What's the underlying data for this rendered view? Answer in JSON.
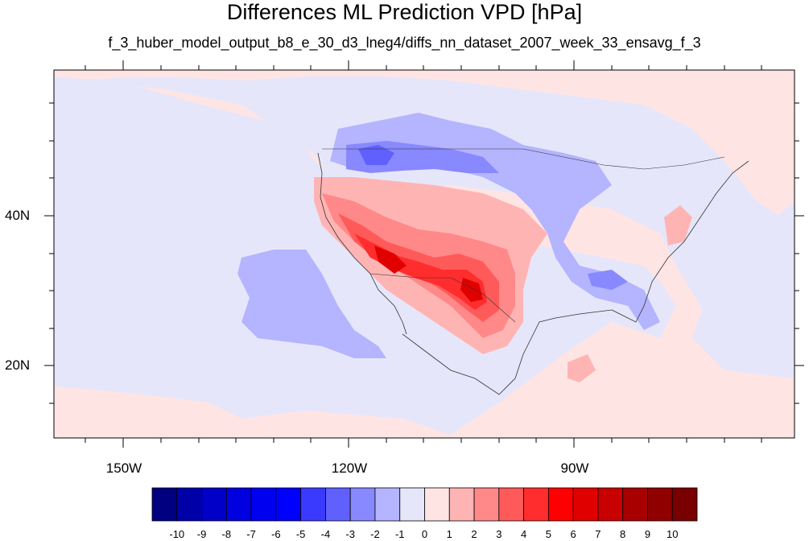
{
  "title": "Differences ML Prediction VPD [hPa]",
  "subtitle": "f_3_huber_model_output_b8_e_30_d3_lneg4/diffs_nn_dataset_2007_week_33_ensavg_f_3",
  "map": {
    "lat_labels": [
      "40N",
      "20N"
    ],
    "lon_labels": [
      "150W",
      "120W",
      "90W"
    ],
    "background_color": "#e6e6fa"
  },
  "colorbar": {
    "tick_labels": [
      "-10",
      "-9",
      "-8",
      "-7",
      "-6",
      "-5",
      "-4",
      "-3",
      "-2",
      "-1",
      "0",
      "1",
      "2",
      "3",
      "4",
      "5",
      "6",
      "7",
      "8",
      "9",
      "10"
    ],
    "colors": [
      "#000080",
      "#0000a8",
      "#0000c8",
      "#0000e0",
      "#0000f0",
      "#0000ff",
      "#3a3aff",
      "#6060ff",
      "#8888ff",
      "#b4b4ff",
      "#e6e6fa",
      "#ffe4e4",
      "#ffb4b4",
      "#ff8888",
      "#ff5a5a",
      "#ff2d2d",
      "#ff0000",
      "#e00000",
      "#c80000",
      "#a80000",
      "#900000",
      "#780000"
    ]
  }
}
